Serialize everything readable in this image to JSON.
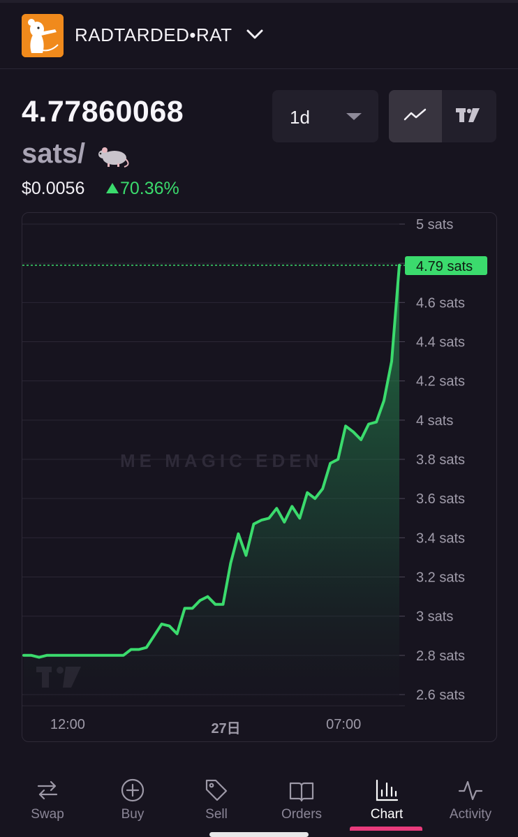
{
  "header": {
    "token_name": "RADTARDED•RAT",
    "logo_icon": "rat-logo-icon",
    "accent": "#f08a1c"
  },
  "price": {
    "value": "4.77860068",
    "unit": "sats/",
    "unit_icon": "rat-emoji-icon",
    "usd": "$0.0056",
    "change": "70.36%",
    "change_color": "#3bdb6d"
  },
  "controls": {
    "period": "1d",
    "chart_modes": [
      "line-chart-icon",
      "tradingview-icon"
    ],
    "active_mode": "line-chart-icon"
  },
  "chart_data": {
    "type": "area",
    "y_unit": "sats",
    "ylim": [
      2.55,
      5.05
    ],
    "y_ticks": [
      "5 sats",
      "4.8 sats",
      "4.6 sats",
      "4.4 sats",
      "4.2 sats",
      "4 sats",
      "3.8 sats",
      "3.6 sats",
      "3.4 sats",
      "3.2 sats",
      "3 sats",
      "2.8 sats",
      "2.6 sats"
    ],
    "y_tick_values": [
      5.0,
      4.8,
      4.6,
      4.4,
      4.2,
      4.0,
      3.8,
      3.6,
      3.4,
      3.2,
      3.0,
      2.8,
      2.6
    ],
    "x_ticks": [
      "12:00",
      "27日",
      "07:00"
    ],
    "x_tick_index": [
      6,
      27,
      42
    ],
    "last_price_label": "4.79 sats",
    "last_price": 4.79,
    "grid": true,
    "watermark": "MAGIC EDEN",
    "line_color": "#3bdb6d",
    "values": [
      2.8,
      2.8,
      2.79,
      2.8,
      2.8,
      2.8,
      2.8,
      2.8,
      2.8,
      2.8,
      2.8,
      2.8,
      2.8,
      2.8,
      2.83,
      2.83,
      2.84,
      2.9,
      2.96,
      2.95,
      2.91,
      3.04,
      3.04,
      3.08,
      3.1,
      3.06,
      3.06,
      3.27,
      3.42,
      3.31,
      3.47,
      3.49,
      3.5,
      3.55,
      3.48,
      3.56,
      3.5,
      3.63,
      3.6,
      3.65,
      3.78,
      3.8,
      3.97,
      3.94,
      3.9,
      3.98,
      3.99,
      4.1,
      4.3,
      4.79
    ]
  },
  "tabs": [
    {
      "label": "Swap",
      "icon": "swap-icon"
    },
    {
      "label": "Buy",
      "icon": "plus-circle-icon"
    },
    {
      "label": "Sell",
      "icon": "tag-icon"
    },
    {
      "label": "Orders",
      "icon": "book-icon"
    },
    {
      "label": "Chart",
      "icon": "bar-chart-icon"
    },
    {
      "label": "Activity",
      "icon": "activity-icon"
    }
  ],
  "active_tab": "Chart"
}
